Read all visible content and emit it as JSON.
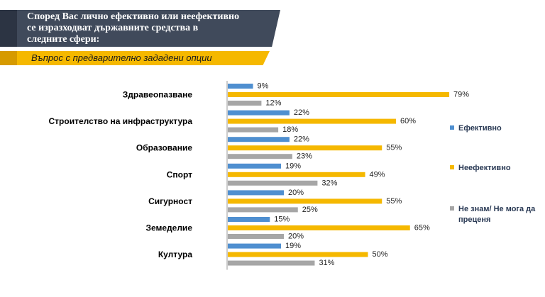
{
  "header": {
    "title": "Според Вас лично ефективно или неефективно\nсе изразходват държавните средства в\nследните сфери:",
    "subtitle": "Въпрос с предварително зададени опции"
  },
  "colors": {
    "banner_dark": "#404a5b",
    "banner_yellow": "#f5b800"
  },
  "chart_data": {
    "type": "bar",
    "orientation": "horizontal",
    "title": "Според Вас лично ефективно или неефективно се изразходват държавните средства в следните сфери:",
    "categories": [
      "Здравеопазване",
      "Строителство на инфраструктура",
      "Образование",
      "Спорт",
      "Сигурност",
      "Земеделие",
      "Култура"
    ],
    "series": [
      {
        "name": "Ефективно",
        "color": "#4f8fd0",
        "values": [
          9,
          22,
          22,
          19,
          20,
          15,
          19
        ]
      },
      {
        "name": "Неефективно",
        "color": "#f5b800",
        "values": [
          79,
          60,
          55,
          49,
          55,
          65,
          50
        ]
      },
      {
        "name": "Не знам/ Не мога да преценя",
        "color": "#a6a6a6",
        "values": [
          12,
          18,
          23,
          32,
          25,
          20,
          31
        ]
      }
    ],
    "value_suffix": "%",
    "xlim": [
      0,
      100
    ],
    "legend": [
      "Ефективно",
      "Неефективно",
      "Не знам/ Не мога да\nпреценя"
    ],
    "legend_position": "right"
  }
}
